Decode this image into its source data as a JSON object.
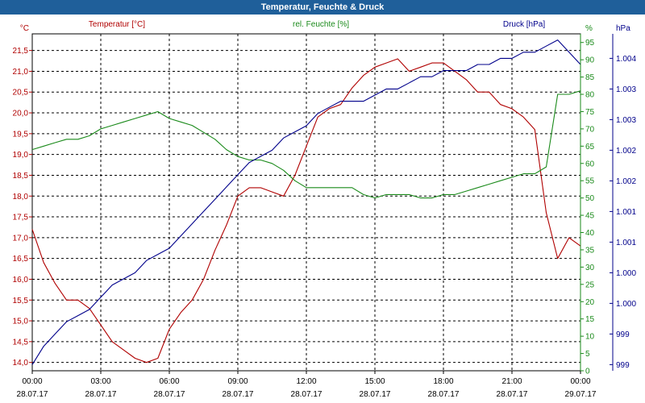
{
  "window": {
    "title": "Temperatur, Feuchte & Druck"
  },
  "colors": {
    "temperature": "#b00000",
    "humidity": "#1a8a1a",
    "pressure": "#00008b",
    "axis": "#000000",
    "grid": "#000000"
  },
  "chart_data": {
    "type": "line",
    "title": "Temperatur, Feuchte & Druck",
    "grid": true,
    "x_ticks": [
      {
        "time": "00:00",
        "date": "28.07.17"
      },
      {
        "time": "03:00",
        "date": "28.07.17"
      },
      {
        "time": "06:00",
        "date": "28.07.17"
      },
      {
        "time": "09:00",
        "date": "28.07.17"
      },
      {
        "time": "12:00",
        "date": "28.07.17"
      },
      {
        "time": "15:00",
        "date": "28.07.17"
      },
      {
        "time": "18:00",
        "date": "28.07.17"
      },
      {
        "time": "21:00",
        "date": "28.07.17"
      },
      {
        "time": "00:00",
        "date": "29.07.17"
      }
    ],
    "axes": {
      "temperature": {
        "label": "Temperatur [°C]",
        "unit": "°C",
        "ylim": [
          13.8,
          21.9
        ],
        "ticks": [
          "14,0",
          "14,5",
          "15,0",
          "15,5",
          "16,0",
          "16,5",
          "17,0",
          "17,5",
          "18,0",
          "18,5",
          "19,0",
          "19,5",
          "20,0",
          "20,5",
          "21,0",
          "21,5"
        ]
      },
      "humidity": {
        "label": "rel. Feuchte [%]",
        "unit": "%",
        "ylim": [
          0,
          97.5
        ],
        "ticks": [
          "0",
          "5",
          "10",
          "15",
          "20",
          "25",
          "30",
          "35",
          "40",
          "45",
          "50",
          "55",
          "60",
          "65",
          "70",
          "75",
          "80",
          "85",
          "90",
          "95"
        ]
      },
      "pressure": {
        "label": "Druck [hPa]",
        "unit": "hPa",
        "ylim": [
          998.9,
          1004.4
        ],
        "ticks": [
          "999",
          "999",
          "1.000",
          "1.000",
          "1.001",
          "1.001",
          "1.002",
          "1.002",
          "1.003",
          "1.003",
          "1.004"
        ]
      }
    },
    "x": [
      "00:00",
      "00:30",
      "01:00",
      "01:30",
      "02:00",
      "02:30",
      "03:00",
      "03:30",
      "04:00",
      "04:30",
      "05:00",
      "05:30",
      "06:00",
      "06:30",
      "07:00",
      "07:30",
      "08:00",
      "08:30",
      "09:00",
      "09:30",
      "10:00",
      "10:30",
      "11:00",
      "11:30",
      "12:00",
      "12:30",
      "13:00",
      "13:30",
      "14:00",
      "14:30",
      "15:00",
      "15:30",
      "16:00",
      "16:30",
      "17:00",
      "17:30",
      "18:00",
      "18:30",
      "19:00",
      "19:30",
      "20:00",
      "20:30",
      "21:00",
      "21:30",
      "22:00",
      "22:30",
      "23:00",
      "23:30",
      "24:00"
    ],
    "series": [
      {
        "name": "Temperatur [°C]",
        "axis": "temperature",
        "values": [
          17.2,
          16.4,
          15.9,
          15.5,
          15.5,
          15.3,
          14.9,
          14.5,
          14.3,
          14.1,
          14.0,
          14.1,
          14.8,
          15.2,
          15.5,
          16.0,
          16.7,
          17.3,
          18.0,
          18.2,
          18.2,
          18.1,
          18.0,
          18.5,
          19.2,
          19.9,
          20.1,
          20.2,
          20.6,
          20.9,
          21.1,
          21.2,
          21.3,
          21.0,
          21.1,
          21.2,
          21.2,
          21.0,
          20.8,
          20.5,
          20.5,
          20.2,
          20.1,
          19.9,
          19.6,
          17.6,
          16.5,
          17.0,
          16.8
        ]
      },
      {
        "name": "rel. Feuchte [%]",
        "axis": "humidity",
        "values": [
          64,
          65,
          66,
          67,
          67,
          68,
          70,
          71,
          72,
          73,
          74,
          75,
          73,
          72,
          71,
          69,
          67,
          64,
          62,
          61,
          61,
          60,
          58,
          55,
          53,
          53,
          53,
          53,
          53,
          51,
          50,
          51,
          51,
          51,
          50,
          50,
          51,
          51,
          52,
          53,
          54,
          55,
          56,
          57,
          57,
          59,
          80,
          80,
          81
        ]
      },
      {
        "name": "Druck [hPa]",
        "axis": "pressure",
        "values": [
          999.0,
          999.3,
          999.5,
          999.7,
          999.8,
          999.9,
          1000.1,
          1000.3,
          1000.4,
          1000.5,
          1000.7,
          1000.8,
          1000.9,
          1001.1,
          1001.3,
          1001.5,
          1001.7,
          1001.9,
          1002.1,
          1002.3,
          1002.4,
          1002.5,
          1002.7,
          1002.8,
          1002.9,
          1003.1,
          1003.2,
          1003.3,
          1003.3,
          1003.3,
          1003.4,
          1003.5,
          1003.5,
          1003.6,
          1003.7,
          1003.7,
          1003.8,
          1003.8,
          1003.8,
          1003.9,
          1003.9,
          1004.0,
          1004.0,
          1004.1,
          1004.1,
          1004.2,
          1004.3,
          1004.1,
          1003.9
        ]
      }
    ]
  }
}
